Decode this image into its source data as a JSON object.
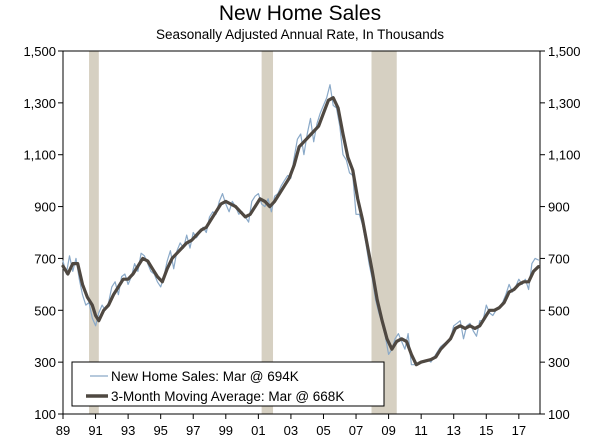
{
  "chart_data": {
    "type": "line",
    "title": "New Home Sales",
    "subtitle": "Seasonally Adjusted Annual Rate, In Thousands",
    "ylim": [
      100,
      1500
    ],
    "y_ticks": [
      "1,500",
      "1,300",
      "1,100",
      "900",
      "700",
      "500",
      "300",
      "100"
    ],
    "y_tick_values": [
      1500,
      1300,
      1100,
      900,
      700,
      500,
      300,
      100
    ],
    "xlim": [
      1989.0,
      2018.3
    ],
    "x_ticks": [
      "89",
      "91",
      "93",
      "95",
      "97",
      "99",
      "01",
      "03",
      "05",
      "07",
      "09",
      "11",
      "13",
      "15",
      "17"
    ],
    "x_tick_values": [
      1989,
      1991,
      1993,
      1995,
      1997,
      1999,
      2001,
      2003,
      2005,
      2007,
      2009,
      2011,
      2013,
      2015,
      2017
    ],
    "recessions": [
      [
        1990.6,
        1991.2
      ],
      [
        2001.2,
        2001.9
      ],
      [
        2007.95,
        2009.5
      ]
    ],
    "grid": false,
    "legend_position": "bottom-left",
    "series": [
      {
        "name": "New Home Sales: Mar @ 694K",
        "color": "#8aa9c8",
        "points": [
          [
            1989.0,
            690
          ],
          [
            1989.2,
            640
          ],
          [
            1989.4,
            710
          ],
          [
            1989.6,
            650
          ],
          [
            1989.8,
            700
          ],
          [
            1990.0,
            620
          ],
          [
            1990.2,
            560
          ],
          [
            1990.4,
            520
          ],
          [
            1990.6,
            530
          ],
          [
            1990.8,
            470
          ],
          [
            1991.0,
            440
          ],
          [
            1991.2,
            490
          ],
          [
            1991.4,
            520
          ],
          [
            1991.6,
            500
          ],
          [
            1991.8,
            530
          ],
          [
            1992.0,
            590
          ],
          [
            1992.2,
            610
          ],
          [
            1992.4,
            560
          ],
          [
            1992.6,
            630
          ],
          [
            1992.8,
            640
          ],
          [
            1993.0,
            600
          ],
          [
            1993.2,
            630
          ],
          [
            1993.4,
            680
          ],
          [
            1993.6,
            650
          ],
          [
            1993.8,
            720
          ],
          [
            1994.0,
            710
          ],
          [
            1994.2,
            680
          ],
          [
            1994.4,
            650
          ],
          [
            1994.6,
            640
          ],
          [
            1994.8,
            610
          ],
          [
            1995.0,
            590
          ],
          [
            1995.2,
            630
          ],
          [
            1995.4,
            690
          ],
          [
            1995.6,
            730
          ],
          [
            1995.8,
            660
          ],
          [
            1996.0,
            730
          ],
          [
            1996.2,
            760
          ],
          [
            1996.4,
            740
          ],
          [
            1996.6,
            790
          ],
          [
            1996.8,
            740
          ],
          [
            1997.0,
            800
          ],
          [
            1997.2,
            780
          ],
          [
            1997.4,
            800
          ],
          [
            1997.6,
            820
          ],
          [
            1997.8,
            800
          ],
          [
            1998.0,
            860
          ],
          [
            1998.2,
            880
          ],
          [
            1998.4,
            870
          ],
          [
            1998.6,
            920
          ],
          [
            1998.8,
            950
          ],
          [
            1999.0,
            910
          ],
          [
            1999.2,
            880
          ],
          [
            1999.4,
            920
          ],
          [
            1999.6,
            900
          ],
          [
            1999.8,
            870
          ],
          [
            2000.0,
            880
          ],
          [
            2000.2,
            860
          ],
          [
            2000.4,
            840
          ],
          [
            2000.6,
            920
          ],
          [
            2000.8,
            940
          ],
          [
            2001.0,
            950
          ],
          [
            2001.2,
            910
          ],
          [
            2001.4,
            900
          ],
          [
            2001.6,
            930
          ],
          [
            2001.8,
            880
          ],
          [
            2002.0,
            940
          ],
          [
            2002.2,
            950
          ],
          [
            2002.4,
            980
          ],
          [
            2002.6,
            1000
          ],
          [
            2002.8,
            1020
          ],
          [
            2003.0,
            1010
          ],
          [
            2003.2,
            1090
          ],
          [
            2003.4,
            1160
          ],
          [
            2003.6,
            1180
          ],
          [
            2003.8,
            1100
          ],
          [
            2004.0,
            1180
          ],
          [
            2004.2,
            1240
          ],
          [
            2004.4,
            1150
          ],
          [
            2004.6,
            1220
          ],
          [
            2004.8,
            1260
          ],
          [
            2005.0,
            1290
          ],
          [
            2005.2,
            1320
          ],
          [
            2005.4,
            1370
          ],
          [
            2005.6,
            1290
          ],
          [
            2005.8,
            1280
          ],
          [
            2006.0,
            1210
          ],
          [
            2006.2,
            1100
          ],
          [
            2006.4,
            1080
          ],
          [
            2006.6,
            1030
          ],
          [
            2006.8,
            1020
          ],
          [
            2007.0,
            870
          ],
          [
            2007.2,
            870
          ],
          [
            2007.4,
            830
          ],
          [
            2007.6,
            760
          ],
          [
            2007.8,
            680
          ],
          [
            2008.0,
            620
          ],
          [
            2008.2,
            540
          ],
          [
            2008.4,
            490
          ],
          [
            2008.6,
            450
          ],
          [
            2008.8,
            400
          ],
          [
            2009.0,
            330
          ],
          [
            2009.2,
            350
          ],
          [
            2009.4,
            390
          ],
          [
            2009.6,
            410
          ],
          [
            2009.8,
            380
          ],
          [
            2010.0,
            350
          ],
          [
            2010.2,
            410
          ],
          [
            2010.4,
            290
          ],
          [
            2010.6,
            290
          ],
          [
            2010.8,
            290
          ],
          [
            2011.0,
            300
          ],
          [
            2011.2,
            300
          ],
          [
            2011.4,
            310
          ],
          [
            2011.6,
            300
          ],
          [
            2011.8,
            320
          ],
          [
            2012.0,
            340
          ],
          [
            2012.2,
            360
          ],
          [
            2012.4,
            370
          ],
          [
            2012.6,
            380
          ],
          [
            2012.8,
            390
          ],
          [
            2013.0,
            440
          ],
          [
            2013.2,
            450
          ],
          [
            2013.4,
            460
          ],
          [
            2013.6,
            390
          ],
          [
            2013.8,
            440
          ],
          [
            2014.0,
            450
          ],
          [
            2014.2,
            420
          ],
          [
            2014.4,
            400
          ],
          [
            2014.6,
            460
          ],
          [
            2014.8,
            460
          ],
          [
            2015.0,
            520
          ],
          [
            2015.2,
            490
          ],
          [
            2015.4,
            480
          ],
          [
            2015.6,
            500
          ],
          [
            2015.8,
            510
          ],
          [
            2016.0,
            530
          ],
          [
            2016.2,
            560
          ],
          [
            2016.4,
            600
          ],
          [
            2016.6,
            570
          ],
          [
            2016.8,
            590
          ],
          [
            2017.0,
            620
          ],
          [
            2017.2,
            600
          ],
          [
            2017.4,
            620
          ],
          [
            2017.6,
            580
          ],
          [
            2017.8,
            680
          ],
          [
            2018.0,
            700
          ],
          [
            2018.2,
            694
          ]
        ]
      },
      {
        "name": "3-Month Moving Average: Mar @ 668K",
        "color": "#4f4841",
        "points": [
          [
            1989.0,
            670
          ],
          [
            1989.3,
            640
          ],
          [
            1989.6,
            680
          ],
          [
            1989.9,
            680
          ],
          [
            1990.2,
            600
          ],
          [
            1990.5,
            550
          ],
          [
            1990.8,
            520
          ],
          [
            1991.0,
            480
          ],
          [
            1991.2,
            460
          ],
          [
            1991.5,
            500
          ],
          [
            1991.8,
            520
          ],
          [
            1992.1,
            560
          ],
          [
            1992.4,
            590
          ],
          [
            1992.7,
            620
          ],
          [
            1993.0,
            620
          ],
          [
            1993.3,
            640
          ],
          [
            1993.6,
            670
          ],
          [
            1993.9,
            700
          ],
          [
            1994.2,
            690
          ],
          [
            1994.5,
            660
          ],
          [
            1994.8,
            630
          ],
          [
            1995.1,
            610
          ],
          [
            1995.4,
            660
          ],
          [
            1995.7,
            700
          ],
          [
            1996.0,
            720
          ],
          [
            1996.3,
            740
          ],
          [
            1996.6,
            760
          ],
          [
            1996.9,
            770
          ],
          [
            1997.2,
            790
          ],
          [
            1997.5,
            810
          ],
          [
            1997.8,
            820
          ],
          [
            1998.1,
            850
          ],
          [
            1998.4,
            880
          ],
          [
            1998.7,
            910
          ],
          [
            1999.0,
            920
          ],
          [
            1999.3,
            910
          ],
          [
            1999.6,
            900
          ],
          [
            1999.9,
            880
          ],
          [
            2000.2,
            860
          ],
          [
            2000.5,
            870
          ],
          [
            2000.8,
            900
          ],
          [
            2001.1,
            930
          ],
          [
            2001.4,
            920
          ],
          [
            2001.7,
            900
          ],
          [
            2002.0,
            920
          ],
          [
            2002.3,
            950
          ],
          [
            2002.6,
            980
          ],
          [
            2002.9,
            1010
          ],
          [
            2003.2,
            1060
          ],
          [
            2003.5,
            1130
          ],
          [
            2003.8,
            1150
          ],
          [
            2004.1,
            1170
          ],
          [
            2004.4,
            1190
          ],
          [
            2004.7,
            1210
          ],
          [
            2005.0,
            1260
          ],
          [
            2005.3,
            1310
          ],
          [
            2005.6,
            1320
          ],
          [
            2005.9,
            1280
          ],
          [
            2006.2,
            1180
          ],
          [
            2006.5,
            1090
          ],
          [
            2006.8,
            1040
          ],
          [
            2007.1,
            930
          ],
          [
            2007.4,
            850
          ],
          [
            2007.7,
            750
          ],
          [
            2008.0,
            650
          ],
          [
            2008.3,
            540
          ],
          [
            2008.6,
            460
          ],
          [
            2008.9,
            390
          ],
          [
            2009.2,
            350
          ],
          [
            2009.5,
            380
          ],
          [
            2009.8,
            390
          ],
          [
            2010.1,
            380
          ],
          [
            2010.4,
            330
          ],
          [
            2010.7,
            290
          ],
          [
            2011.0,
            300
          ],
          [
            2011.3,
            305
          ],
          [
            2011.6,
            310
          ],
          [
            2011.9,
            320
          ],
          [
            2012.2,
            350
          ],
          [
            2012.5,
            370
          ],
          [
            2012.8,
            390
          ],
          [
            2013.1,
            430
          ],
          [
            2013.4,
            440
          ],
          [
            2013.7,
            430
          ],
          [
            2014.0,
            440
          ],
          [
            2014.3,
            430
          ],
          [
            2014.6,
            440
          ],
          [
            2014.9,
            470
          ],
          [
            2015.2,
            500
          ],
          [
            2015.5,
            500
          ],
          [
            2015.8,
            510
          ],
          [
            2016.1,
            530
          ],
          [
            2016.4,
            570
          ],
          [
            2016.7,
            580
          ],
          [
            2017.0,
            600
          ],
          [
            2017.3,
            610
          ],
          [
            2017.6,
            610
          ],
          [
            2017.9,
            650
          ],
          [
            2018.2,
            668
          ]
        ]
      }
    ]
  }
}
